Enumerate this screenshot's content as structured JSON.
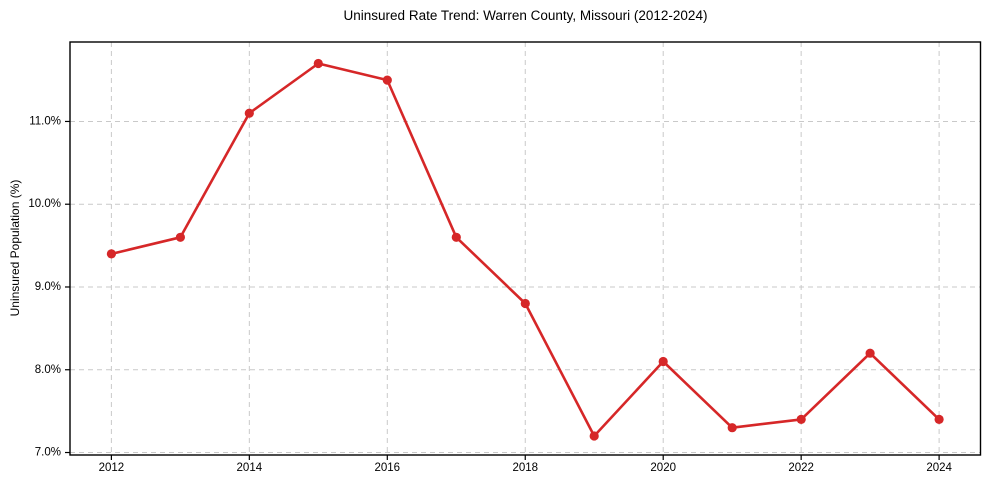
{
  "chart_data": {
    "type": "line",
    "title": "Uninsured Rate Trend: Warren County, Missouri (2012-2024)",
    "xlabel": "",
    "ylabel": "Uninsured Population (%)",
    "x": [
      2012,
      2013,
      2014,
      2015,
      2016,
      2017,
      2018,
      2019,
      2020,
      2021,
      2022,
      2023,
      2024
    ],
    "values": [
      9.4,
      9.6,
      11.1,
      11.7,
      11.5,
      9.6,
      8.8,
      7.2,
      8.1,
      7.3,
      7.4,
      8.2,
      7.4
    ],
    "xlim": [
      2011.4,
      2024.6
    ],
    "ylim": [
      6.97,
      11.96
    ],
    "xticks": {
      "values": [
        2012,
        2014,
        2016,
        2018,
        2020,
        2022,
        2024
      ],
      "labels": [
        "2012",
        "2014",
        "2016",
        "2018",
        "2020",
        "2022",
        "2024"
      ]
    },
    "yticks": {
      "values": [
        7,
        8,
        9,
        10,
        11
      ],
      "labels": [
        "7.0%",
        "8.0%",
        "9.0%",
        "10.0%",
        "11.0%"
      ]
    },
    "grid": true,
    "grid_style": "dashed",
    "legend": false,
    "colors": {
      "line": "#d62728",
      "marker": "#d62728",
      "grid": "#c9c9c9",
      "spine": "#000000",
      "tick_text": "#000000",
      "background": "#ffffff"
    },
    "marker": "o"
  }
}
